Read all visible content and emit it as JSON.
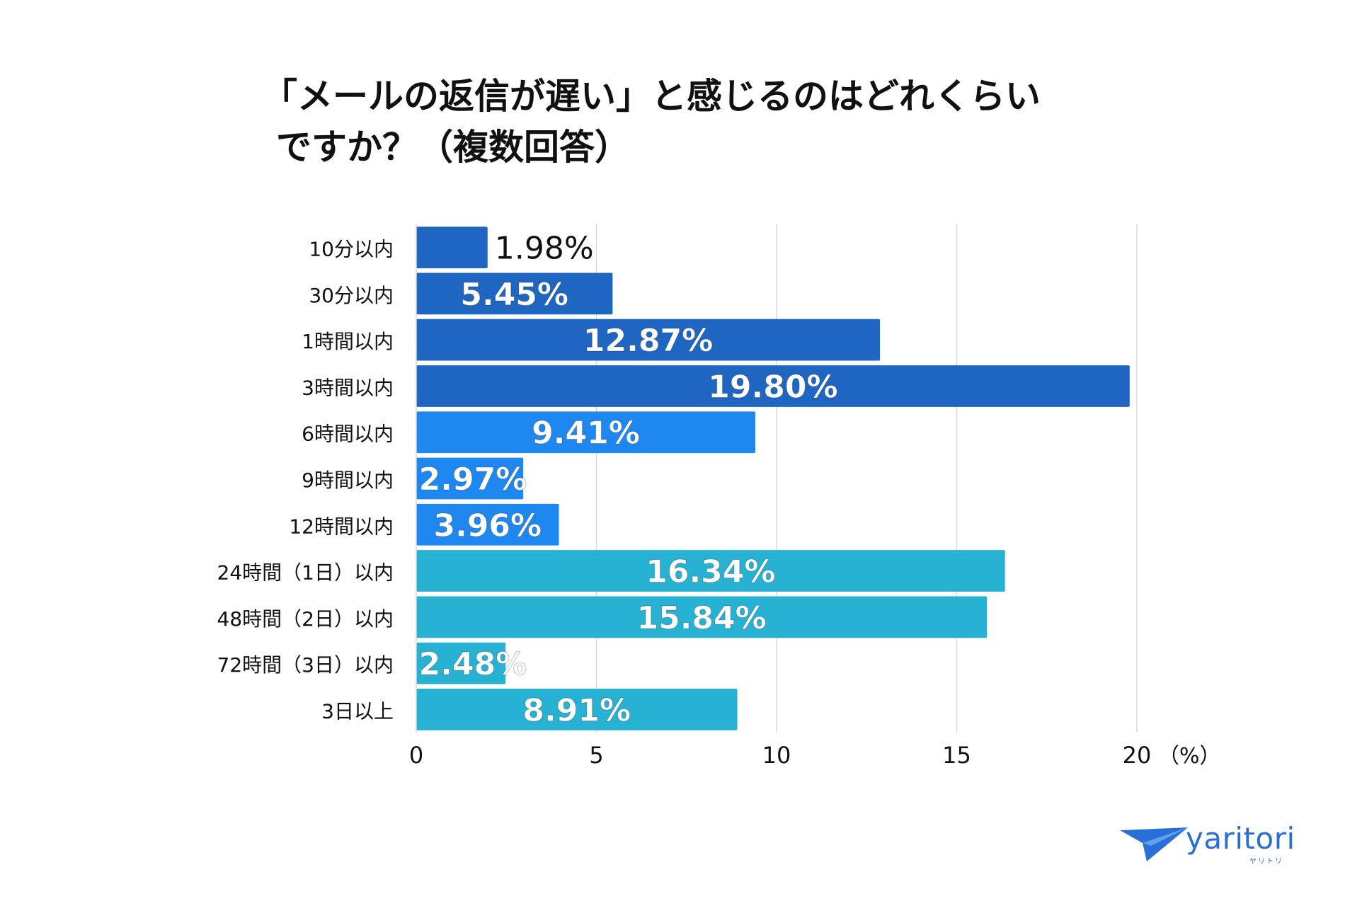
{
  "chart_data": {
    "type": "bar",
    "orientation": "horizontal",
    "title_lines": [
      "「メールの返信が遅い」と感じるのはどれくらい",
      "ですか？（複数回答）"
    ],
    "categories": [
      "10分以内",
      "30分以内",
      "1時間以内",
      "3時間以内",
      "6時間以内",
      "9時間以内",
      "12時間以内",
      "24時間（1日）以内",
      "48時間（2日）以内",
      "72時間（3日）以内",
      "3日以上"
    ],
    "values": [
      1.98,
      5.45,
      12.87,
      19.8,
      9.41,
      2.97,
      3.96,
      16.34,
      15.84,
      2.48,
      8.91
    ],
    "value_labels": [
      "1.98%",
      "5.45%",
      "12.87%",
      "19.80%",
      "9.41%",
      "2.97%",
      "3.96%",
      "16.34%",
      "15.84%",
      "2.48%",
      "8.91%"
    ],
    "bar_colors": [
      "#1f66c2",
      "#1f66c2",
      "#1f66c2",
      "#1f66c2",
      "#1e88f0",
      "#1e88f0",
      "#1e88f0",
      "#27b2d3",
      "#27b2d3",
      "#27b2d3",
      "#27b2d3"
    ],
    "x_ticks": [
      0,
      5,
      10,
      15,
      20
    ],
    "x_tick_labels": [
      "0",
      "5",
      "10",
      "15",
      "20"
    ],
    "xlim": [
      0,
      20
    ],
    "unit_label": "（%）",
    "grid": true
  },
  "logo": {
    "name": "yaritori",
    "subtitle": "ヤリトリ",
    "color": "#2a6fd6"
  }
}
